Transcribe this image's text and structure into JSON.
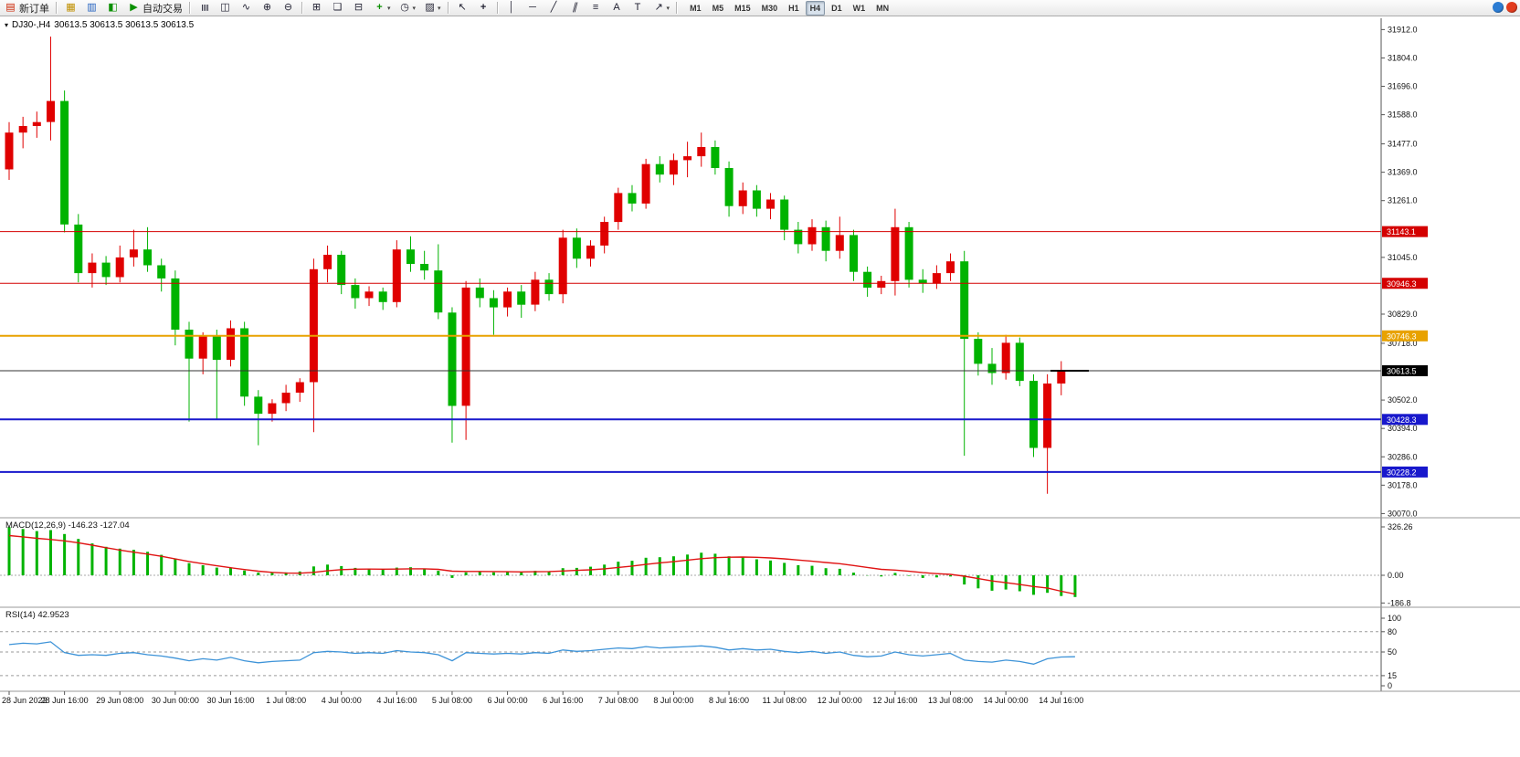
{
  "toolbar": {
    "new_order_label": "新订单",
    "auto_trading_label": "自动交易",
    "timeframes": [
      "M1",
      "M5",
      "M15",
      "M30",
      "H1",
      "H4",
      "D1",
      "W1",
      "MN"
    ],
    "active_timeframe": "H4",
    "icons": {
      "new_order": "▤",
      "charts": "▦",
      "market_watch": "▥",
      "navigator": "◧",
      "auto_trading_play": "▶",
      "bar_chart": "≣",
      "candlestick": "◫",
      "line_chart": "∿",
      "zoom_in": "⊕",
      "zoom_out": "⊖",
      "tile_windows": "⊞",
      "cascade_windows": "❏",
      "tile_horizontal": "⊟",
      "indicators": "+",
      "periods": "◷",
      "templates": "▨",
      "cursor": "↖",
      "crosshair": "+",
      "vertical_line": "│",
      "horizontal_line": "─",
      "trendline": "╱",
      "channel": "∥",
      "fibonacci": "≡",
      "text": "A",
      "text_label": "T",
      "arrows": "↗",
      "dropdown": "▾",
      "collapse": "▾"
    }
  },
  "chart": {
    "header_symbol": "DJ30-,H4",
    "header_ohlc": "30613.5 30613.5 30613.5 30613.5"
  },
  "chart_data": {
    "type": "candlestick",
    "symbol": "DJ30-",
    "period": "H4",
    "ylim": [
      30061,
      31955
    ],
    "colors": {
      "up": "#e00000",
      "down": "#00b300",
      "macd_hist": "#00b300",
      "macd_signal": "#e01414",
      "rsi": "#3d93d8"
    },
    "price_ticks": [
      31912.0,
      31804.0,
      31696.0,
      31588.0,
      31477.0,
      31369.0,
      31261.0,
      31045.0,
      30829.0,
      30718.0,
      30502.0,
      30394.0,
      30286.0,
      30178.0,
      30070.0
    ],
    "levels": [
      {
        "price": 31143.1,
        "color": "#d40000",
        "lw": 1
      },
      {
        "price": 30946.3,
        "color": "#d40000",
        "lw": 1
      },
      {
        "price": 30746.3,
        "color": "#e8a200",
        "lw": 2
      },
      {
        "price": 30428.3,
        "color": "#1818cc",
        "lw": 2
      },
      {
        "price": 30228.2,
        "color": "#1818cc",
        "lw": 2
      }
    ],
    "current_price": {
      "price": 30613.5,
      "color": "#000000"
    },
    "x_labels": [
      {
        "i": 0,
        "t": "28 Jun 2022"
      },
      {
        "i": 4,
        "t": "28 Jun 16:00"
      },
      {
        "i": 8,
        "t": "29 Jun 08:00"
      },
      {
        "i": 12,
        "t": "30 Jun 00:00"
      },
      {
        "i": 16,
        "t": "30 Jun 16:00"
      },
      {
        "i": 20,
        "t": "1 Jul 08:00"
      },
      {
        "i": 24,
        "t": "4 Jul 00:00"
      },
      {
        "i": 28,
        "t": "4 Jul 16:00"
      },
      {
        "i": 32,
        "t": "5 Jul 08:00"
      },
      {
        "i": 36,
        "t": "6 Jul 00:00"
      },
      {
        "i": 40,
        "t": "6 Jul 16:00"
      },
      {
        "i": 44,
        "t": "7 Jul 08:00"
      },
      {
        "i": 48,
        "t": "8 Jul 00:00"
      },
      {
        "i": 52,
        "t": "8 Jul 16:00"
      },
      {
        "i": 56,
        "t": "11 Jul 08:00"
      },
      {
        "i": 60,
        "t": "12 Jul 00:00"
      },
      {
        "i": 64,
        "t": "12 Jul 16:00"
      },
      {
        "i": 68,
        "t": "13 Jul 08:00"
      },
      {
        "i": 72,
        "t": "14 Jul 00:00"
      },
      {
        "i": 76,
        "t": "14 Jul 16:00"
      }
    ],
    "candles": [
      [
        31380,
        31560,
        31340,
        31520
      ],
      [
        31520,
        31580,
        31460,
        31545
      ],
      [
        31545,
        31600,
        31500,
        31560
      ],
      [
        31560,
        31885,
        31490,
        31640
      ],
      [
        31640,
        31680,
        31140,
        31170
      ],
      [
        31170,
        31210,
        30950,
        30985
      ],
      [
        30985,
        31060,
        30930,
        31025
      ],
      [
        31025,
        31050,
        30940,
        30970
      ],
      [
        30970,
        31090,
        30950,
        31045
      ],
      [
        31045,
        31150,
        31010,
        31075
      ],
      [
        31075,
        31160,
        30990,
        31015
      ],
      [
        31015,
        31040,
        30915,
        30965
      ],
      [
        30965,
        30995,
        30710,
        30770
      ],
      [
        30770,
        30800,
        30420,
        30660
      ],
      [
        30660,
        30760,
        30600,
        30745
      ],
      [
        30745,
        30770,
        30430,
        30655
      ],
      [
        30655,
        30805,
        30630,
        30775
      ],
      [
        30775,
        30800,
        30480,
        30515
      ],
      [
        30515,
        30540,
        30330,
        30450
      ],
      [
        30450,
        30505,
        30420,
        30490
      ],
      [
        30490,
        30560,
        30460,
        30530
      ],
      [
        30530,
        30585,
        30495,
        30570
      ],
      [
        30570,
        31040,
        30380,
        31000
      ],
      [
        31000,
        31090,
        30950,
        31055
      ],
      [
        31055,
        31070,
        30905,
        30940
      ],
      [
        30940,
        30965,
        30850,
        30890
      ],
      [
        30890,
        30935,
        30860,
        30915
      ],
      [
        30915,
        30930,
        30845,
        30875
      ],
      [
        30875,
        31110,
        30855,
        31075
      ],
      [
        31075,
        31125,
        30990,
        31020
      ],
      [
        31020,
        31070,
        30960,
        30995
      ],
      [
        30995,
        31095,
        30810,
        30835
      ],
      [
        30835,
        30855,
        30340,
        30480
      ],
      [
        30480,
        30955,
        30350,
        30930
      ],
      [
        30930,
        30965,
        30855,
        30890
      ],
      [
        30890,
        30920,
        30750,
        30855
      ],
      [
        30855,
        30930,
        30820,
        30915
      ],
      [
        30915,
        30940,
        30815,
        30865
      ],
      [
        30865,
        30990,
        30840,
        30960
      ],
      [
        30960,
        30985,
        30880,
        30905
      ],
      [
        30905,
        31150,
        30870,
        31120
      ],
      [
        31120,
        31155,
        31005,
        31040
      ],
      [
        31040,
        31110,
        31010,
        31090
      ],
      [
        31090,
        31200,
        31060,
        31180
      ],
      [
        31180,
        31310,
        31150,
        31290
      ],
      [
        31290,
        31320,
        31220,
        31250
      ],
      [
        31250,
        31420,
        31230,
        31400
      ],
      [
        31400,
        31430,
        31330,
        31360
      ],
      [
        31360,
        31440,
        31320,
        31415
      ],
      [
        31415,
        31485,
        31350,
        31430
      ],
      [
        31430,
        31520,
        31390,
        31465
      ],
      [
        31465,
        31490,
        31360,
        31385
      ],
      [
        31385,
        31410,
        31200,
        31240
      ],
      [
        31240,
        31330,
        31210,
        31300
      ],
      [
        31300,
        31320,
        31200,
        31230
      ],
      [
        31230,
        31290,
        31190,
        31265
      ],
      [
        31265,
        31280,
        31110,
        31150
      ],
      [
        31150,
        31180,
        31060,
        31095
      ],
      [
        31095,
        31190,
        31070,
        31160
      ],
      [
        31160,
        31185,
        31030,
        31070
      ],
      [
        31070,
        31200,
        31040,
        31130
      ],
      [
        31130,
        31150,
        30955,
        30990
      ],
      [
        30990,
        31010,
        30895,
        30930
      ],
      [
        30930,
        30975,
        30905,
        30955
      ],
      [
        30955,
        31230,
        30900,
        31160
      ],
      [
        31160,
        31180,
        30930,
        30960
      ],
      [
        30960,
        31000,
        30910,
        30945
      ],
      [
        30945,
        31015,
        30925,
        30985
      ],
      [
        30985,
        31060,
        30955,
        31030
      ],
      [
        31030,
        31070,
        30290,
        30735
      ],
      [
        30735,
        30760,
        30595,
        30640
      ],
      [
        30640,
        30700,
        30560,
        30605
      ],
      [
        30605,
        30750,
        30580,
        30720
      ],
      [
        30720,
        30740,
        30555,
        30575
      ],
      [
        30575,
        30600,
        30285,
        30320
      ],
      [
        30320,
        30600,
        30145,
        30565
      ],
      [
        30565,
        30650,
        30520,
        30613.5
      ],
      [
        30613.5,
        30613.5,
        30613.5,
        30613.5
      ]
    ],
    "macd": {
      "label": "MACD(12,26,9)",
      "values_label": "-146.23 -127.04",
      "y_ticks": [
        {
          "t": "326.26",
          "v": 326.26
        },
        {
          "t": "0.00",
          "v": 0
        },
        {
          "t": "-186.8",
          "v": -186.8
        }
      ],
      "hist": [
        325,
        312,
        298,
        305,
        278,
        245,
        215,
        192,
        180,
        172,
        158,
        138,
        112,
        82,
        68,
        52,
        50,
        32,
        18,
        16,
        20,
        26,
        60,
        72,
        62,
        50,
        44,
        40,
        52,
        54,
        46,
        30,
        -18,
        20,
        24,
        20,
        24,
        22,
        30,
        28,
        48,
        50,
        58,
        72,
        92,
        98,
        118,
        122,
        128,
        140,
        152,
        145,
        128,
        122,
        108,
        100,
        84,
        68,
        64,
        48,
        44,
        18,
        -2,
        -8,
        16,
        -4,
        -18,
        -14,
        -8,
        -62,
        -88,
        -104,
        -96,
        -108,
        -132,
        -118,
        -140,
        -146.23
      ],
      "signal": [
        268,
        259,
        249,
        241,
        232,
        219,
        203,
        186,
        170,
        156,
        143,
        128,
        110,
        93,
        78,
        64,
        51,
        39,
        28,
        20,
        15,
        14,
        20,
        30,
        38,
        41,
        42,
        41,
        42,
        44,
        44,
        40,
        28,
        26,
        26,
        25,
        24,
        23,
        24,
        25,
        29,
        33,
        37,
        44,
        53,
        62,
        73,
        84,
        92,
        102,
        112,
        119,
        122,
        123,
        121,
        117,
        111,
        103,
        95,
        86,
        78,
        66,
        53,
        40,
        35,
        27,
        18,
        11,
        6,
        -6,
        -22,
        -38,
        -50,
        -62,
        -76,
        -86,
        -108,
        -127.04
      ]
    },
    "rsi": {
      "label": "RSI(14)",
      "value_label": "42.9523",
      "y_ticks": [
        {
          "t": "100",
          "v": 100
        },
        {
          "t": "80",
          "v": 80
        },
        {
          "t": "50",
          "v": 50
        },
        {
          "t": "15",
          "v": 15
        },
        {
          "t": "0",
          "v": 0
        }
      ],
      "levels": [
        80,
        50,
        15
      ],
      "values": [
        61,
        63,
        62,
        65,
        49,
        45,
        46,
        45,
        48,
        49,
        46,
        44,
        41,
        37,
        40,
        38,
        42,
        37,
        34,
        36,
        37,
        38,
        49,
        51,
        50,
        48,
        49,
        48,
        52,
        50,
        49,
        46,
        37,
        49,
        48,
        47,
        48,
        47,
        49,
        48,
        53,
        51,
        52,
        54,
        56,
        55,
        58,
        56,
        57,
        58,
        59,
        57,
        53,
        55,
        53,
        54,
        51,
        49,
        51,
        48,
        50,
        45,
        43,
        44,
        50,
        46,
        44,
        46,
        48,
        38,
        36,
        35,
        38,
        36,
        32,
        40,
        42.5,
        42.95
      ]
    }
  }
}
